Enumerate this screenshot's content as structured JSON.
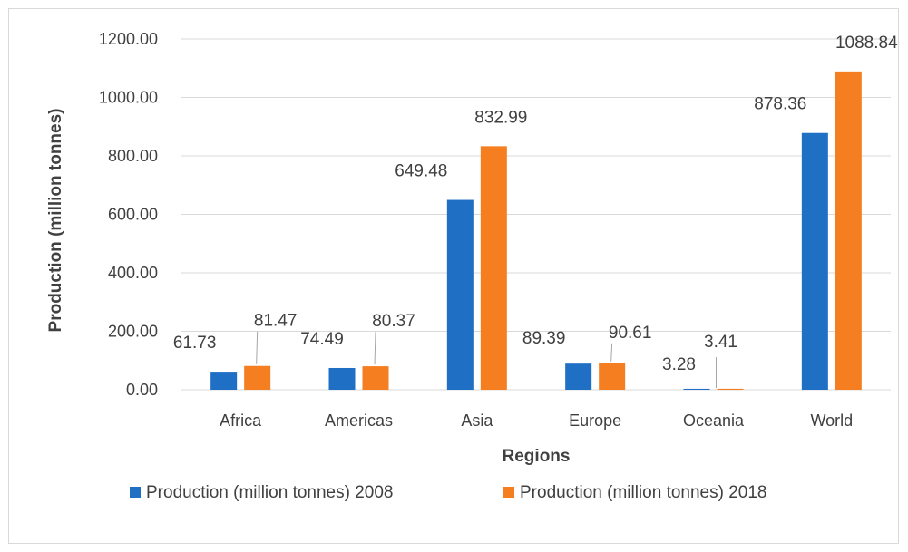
{
  "chart_data": {
    "type": "bar",
    "categories": [
      "Africa",
      "Americas",
      "Asia",
      "Europe",
      "Oceania",
      "World"
    ],
    "series": [
      {
        "name": "Production (million tonnes) 2008",
        "values": [
          61.73,
          74.49,
          649.48,
          89.39,
          3.28,
          878.36
        ],
        "labels": [
          "61.73",
          "74.49",
          "649.48",
          "89.39",
          "3.28",
          "878.36"
        ],
        "color": "#1f6fc5"
      },
      {
        "name": "Production (million tonnes) 2018",
        "values": [
          81.47,
          80.37,
          832.99,
          90.61,
          3.41,
          1088.84
        ],
        "labels": [
          "81.47",
          "80.37",
          "832.99",
          "90.61",
          "3.41",
          "1088.84"
        ],
        "color": "#f57f20"
      }
    ],
    "xlabel": "Regions",
    "ylabel": "Production (million tonnes)",
    "ylim": [
      0,
      1200
    ],
    "yticks": [
      "0.00",
      "200.00",
      "400.00",
      "600.00",
      "800.00",
      "1000.00",
      "1200.00"
    ],
    "grid": true,
    "legend": "bottom",
    "gridline_color": "#d9d9d9"
  }
}
